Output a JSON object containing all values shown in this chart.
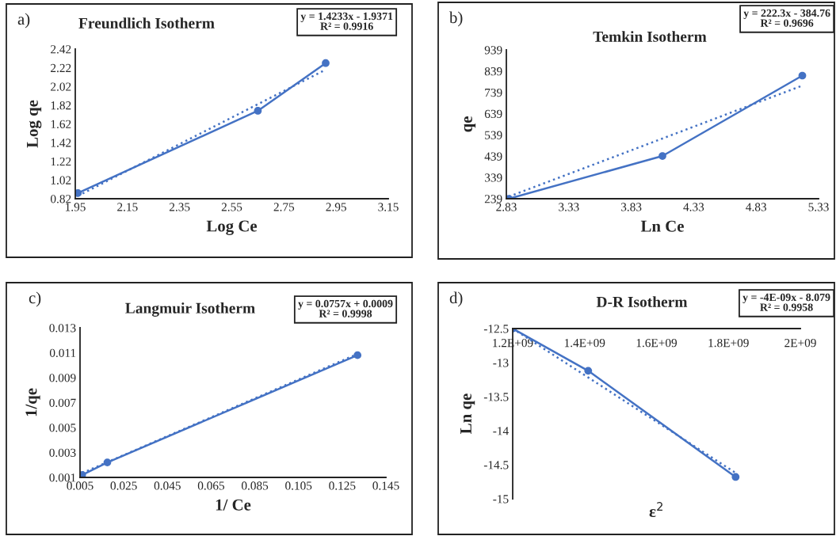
{
  "chart_data": [
    {
      "type": "line",
      "title": "Freundlich Isotherm",
      "xlabel": "Log Ce",
      "ylabel": "Log qe",
      "annotations": [
        "a)",
        "y = 1.4233x - 1.9371\nR² = 0.9916"
      ],
      "xlim": [
        1.95,
        3.15
      ],
      "xticks": [
        1.95,
        2.15,
        2.35,
        2.55,
        2.75,
        2.95,
        3.15
      ],
      "ylim": [
        0.82,
        2.42
      ],
      "yticks": [
        0.82,
        1.02,
        1.22,
        1.42,
        1.62,
        1.82,
        2.02,
        2.22,
        2.42
      ],
      "grid": false,
      "legend": false,
      "series": [
        {
          "color": "#4472c4",
          "x": [
            1.96,
            2.65,
            2.91
          ],
          "values": [
            0.88,
            1.76,
            2.27
          ],
          "marker": "circle",
          "line_style": "solid"
        },
        {
          "color": "#4472c4",
          "x": [
            1.96,
            2.91
          ],
          "values": [
            0.85,
            2.2
          ],
          "marker": "none",
          "line_style": "dotted"
        }
      ]
    },
    {
      "type": "line",
      "title": "Temkin Isotherm",
      "xlabel": "Ln Ce",
      "ylabel": "qe",
      "annotations": [
        "b)",
        "y = 222.3x - 384.76\nR² = 0.9696"
      ],
      "xlim": [
        2.83,
        5.33
      ],
      "xticks": [
        2.83,
        3.33,
        3.83,
        4.33,
        4.83,
        5.33
      ],
      "ylim": [
        239,
        939
      ],
      "yticks": [
        239,
        339,
        439,
        539,
        639,
        739,
        839,
        939
      ],
      "grid": false,
      "legend": false,
      "series": [
        {
          "color": "#4472c4",
          "x": [
            2.85,
            4.08,
            5.2
          ],
          "values": [
            239,
            440,
            818
          ],
          "marker": "circle",
          "line_style": "solid"
        },
        {
          "color": "#4472c4",
          "x": [
            2.85,
            5.2
          ],
          "values": [
            249,
            771
          ],
          "marker": "none",
          "line_style": "dotted"
        }
      ]
    },
    {
      "type": "line",
      "title": "Langmuir Isotherm",
      "xlabel": "1/ Ce",
      "ylabel": "1/qe",
      "annotations": [
        "c)",
        "y = 0.0757x + 0.0009\nR² = 0.9998"
      ],
      "xlim": [
        0.005,
        0.145
      ],
      "xticks": [
        0.005,
        0.025,
        0.045,
        0.065,
        0.085,
        0.105,
        0.125,
        0.145
      ],
      "ylim": [
        0.001,
        0.013
      ],
      "yticks": [
        0.001,
        0.003,
        0.005,
        0.007,
        0.009,
        0.011,
        0.013
      ],
      "grid": false,
      "legend": false,
      "series": [
        {
          "color": "#4472c4",
          "x": [
            0.006,
            0.0175,
            0.132
          ],
          "values": [
            0.0012,
            0.0022,
            0.0108
          ],
          "marker": "circle",
          "line_style": "solid"
        },
        {
          "color": "#4472c4",
          "x": [
            0.006,
            0.132
          ],
          "values": [
            0.00135,
            0.0109
          ],
          "marker": "none",
          "line_style": "dotted"
        }
      ]
    },
    {
      "type": "line",
      "title": "D-R Isotherm",
      "xlabel": "ε$^{2}$",
      "ylabel": "Ln qe",
      "annotations": [
        "d)",
        "y = -4E-09x - 8.079\nR² = 0.9958"
      ],
      "xlim": [
        1200000000,
        2000000000
      ],
      "xticks": [
        {
          "value": 1200000000,
          "label": "1.2E+09"
        },
        {
          "value": 1400000000,
          "label": "1.4E+09"
        },
        {
          "value": 1600000000,
          "label": "1.6E+09"
        },
        {
          "value": 1800000000,
          "label": "1.8E+09"
        },
        {
          "value": 2000000000,
          "label": "2E+09"
        }
      ],
      "ylim": [
        -15,
        -12.5
      ],
      "yticks": [
        -15,
        -14.5,
        -14,
        -13.5,
        -13,
        -12.5
      ],
      "grid": false,
      "legend": false,
      "series": [
        {
          "color": "#4472c4",
          "x": [
            1200000000,
            1410000000,
            1820000000
          ],
          "values": [
            -12.5,
            -13.12,
            -14.68
          ],
          "marker": "circle",
          "line_style": "solid"
        },
        {
          "color": "#4472c4",
          "x": [
            1200000000,
            1820000000
          ],
          "values": [
            -12.5,
            -14.62
          ],
          "marker": "none",
          "line_style": "dotted"
        }
      ]
    }
  ]
}
